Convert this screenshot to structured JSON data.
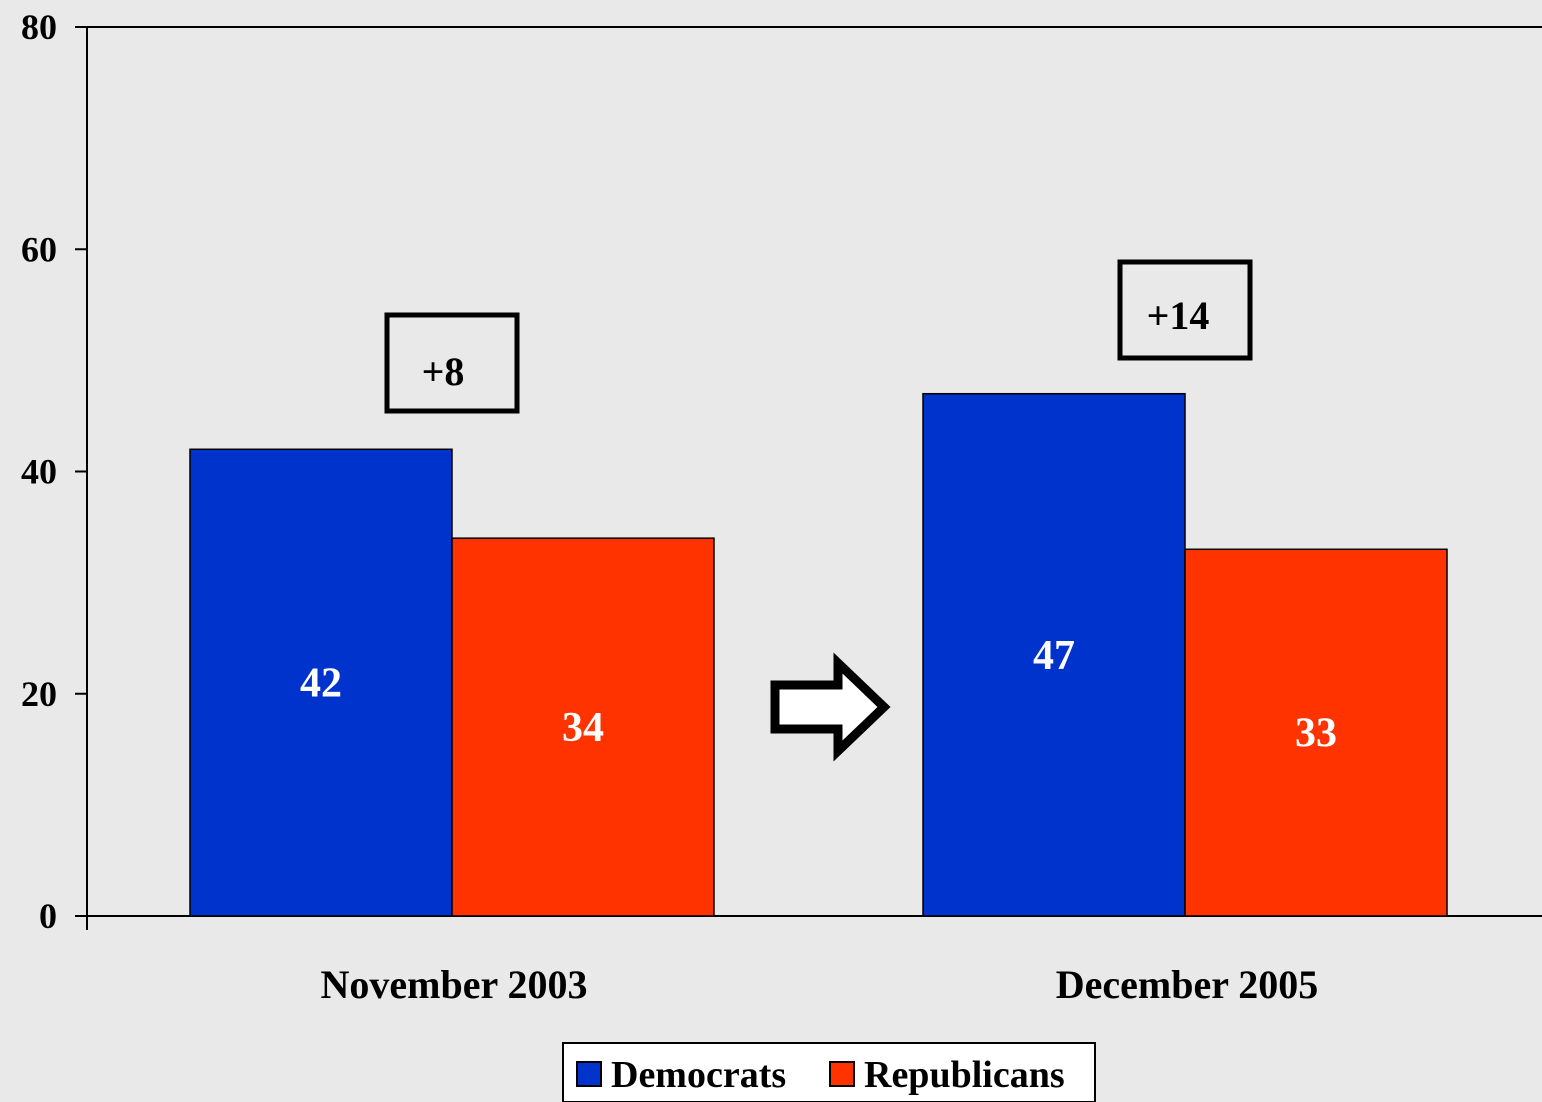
{
  "chart_data": {
    "type": "bar",
    "categories": [
      "November 2003",
      "December 2005"
    ],
    "series": [
      {
        "name": "Democrats",
        "values": [
          42,
          47
        ],
        "color": "#0033cc"
      },
      {
        "name": "Republicans",
        "values": [
          34,
          33
        ],
        "color": "#ff3300"
      }
    ],
    "ylim": [
      0,
      80
    ],
    "yticks": [
      0,
      20,
      40,
      60,
      80
    ],
    "title": "",
    "xlabel": "",
    "ylabel": "",
    "grid": false,
    "legend_position": "bottom-center",
    "annotations": [
      "+8",
      "+14"
    ],
    "arrow_icon": "right-arrow-icon",
    "background_color": "#e9e9e9"
  }
}
